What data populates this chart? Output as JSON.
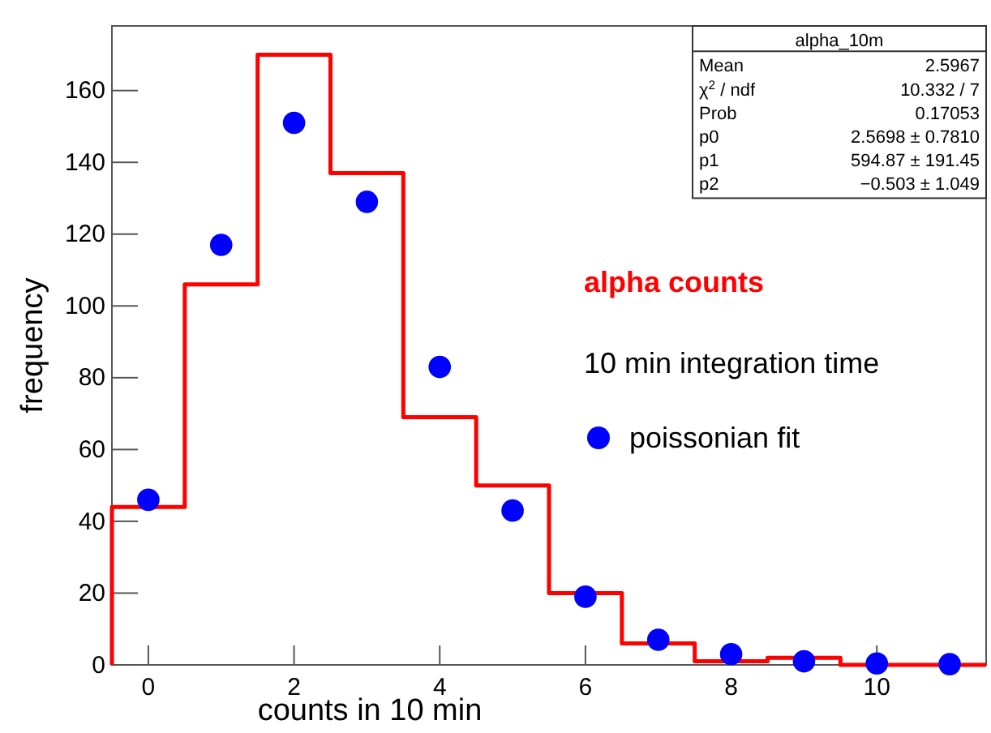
{
  "chart_data": {
    "type": "histogram",
    "xlabel": "counts in 10 min",
    "ylabel": "frequency",
    "bins": [
      -0.5,
      0.5,
      1.5,
      2.5,
      3.5,
      4.5,
      5.5,
      6.5,
      7.5,
      8.5,
      9.5,
      10.5,
      11.5
    ],
    "series": [
      {
        "name": "alpha counts",
        "color": "#ff0000",
        "values": [
          44,
          106,
          170,
          137,
          69,
          50,
          20,
          6,
          1,
          2,
          0,
          0
        ]
      },
      {
        "type": "scatter",
        "name": "poissonian fit",
        "color": "#0000ff",
        "x": [
          0,
          1,
          2,
          3,
          4,
          5,
          6,
          7,
          8,
          9,
          10,
          11
        ],
        "values": [
          46,
          117,
          151,
          129,
          83,
          43,
          19,
          7,
          3,
          1,
          0.4,
          0.2
        ]
      }
    ],
    "marker": "circle",
    "xlim": [
      -0.5,
      11.5
    ],
    "ylim": [
      0,
      178
    ],
    "xticks": [
      0,
      2,
      4,
      6,
      8,
      10
    ],
    "yticks": [
      0,
      20,
      40,
      60,
      80,
      100,
      120,
      140,
      160
    ],
    "legend": "right",
    "annotations": [
      "10 min integration time",
      "alpha_10m",
      "Mean",
      "2.5967",
      "χ$^{2}$ / ndf",
      "10.332 / 7",
      "Prob",
      "0.17053",
      "p0",
      "2.5698 ± 0.7810",
      "p1",
      "594.87 ± 191.45",
      "p2",
      "−0.503 ± 1.049"
    ]
  }
}
